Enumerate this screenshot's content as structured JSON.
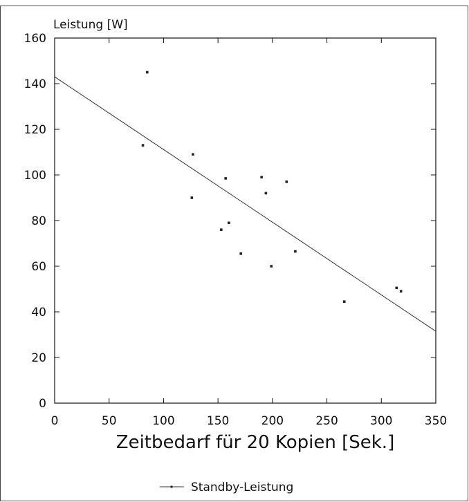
{
  "chart_data": {
    "type": "scatter",
    "ylabel": "Leistung [W]",
    "xlabel": "Zeitbedarf für 20 Kopien [Sek.]",
    "xlim": [
      0,
      350
    ],
    "ylim": [
      0,
      160
    ],
    "xticks": [
      0,
      50,
      100,
      150,
      200,
      250,
      300,
      350
    ],
    "yticks": [
      0,
      20,
      40,
      60,
      80,
      100,
      120,
      140,
      160
    ],
    "grid": false,
    "legend_position": "bottom-center",
    "series": [
      {
        "name": "Standby-Leistung",
        "color": "#222222",
        "points": [
          {
            "x": 85,
            "y": 145
          },
          {
            "x": 81,
            "y": 113
          },
          {
            "x": 127,
            "y": 109
          },
          {
            "x": 126,
            "y": 90
          },
          {
            "x": 157,
            "y": 98.5
          },
          {
            "x": 190,
            "y": 99
          },
          {
            "x": 213,
            "y": 97
          },
          {
            "x": 194,
            "y": 92
          },
          {
            "x": 160,
            "y": 79
          },
          {
            "x": 153,
            "y": 76
          },
          {
            "x": 171,
            "y": 65.5
          },
          {
            "x": 221,
            "y": 66.5
          },
          {
            "x": 199,
            "y": 60
          },
          {
            "x": 266,
            "y": 44.5
          },
          {
            "x": 314,
            "y": 50.5
          },
          {
            "x": 318,
            "y": 49
          }
        ]
      }
    ],
    "trendline": {
      "color": "#333333",
      "from": {
        "x": 0,
        "y": 143
      },
      "to": {
        "x": 350,
        "y": 31.5
      }
    }
  }
}
